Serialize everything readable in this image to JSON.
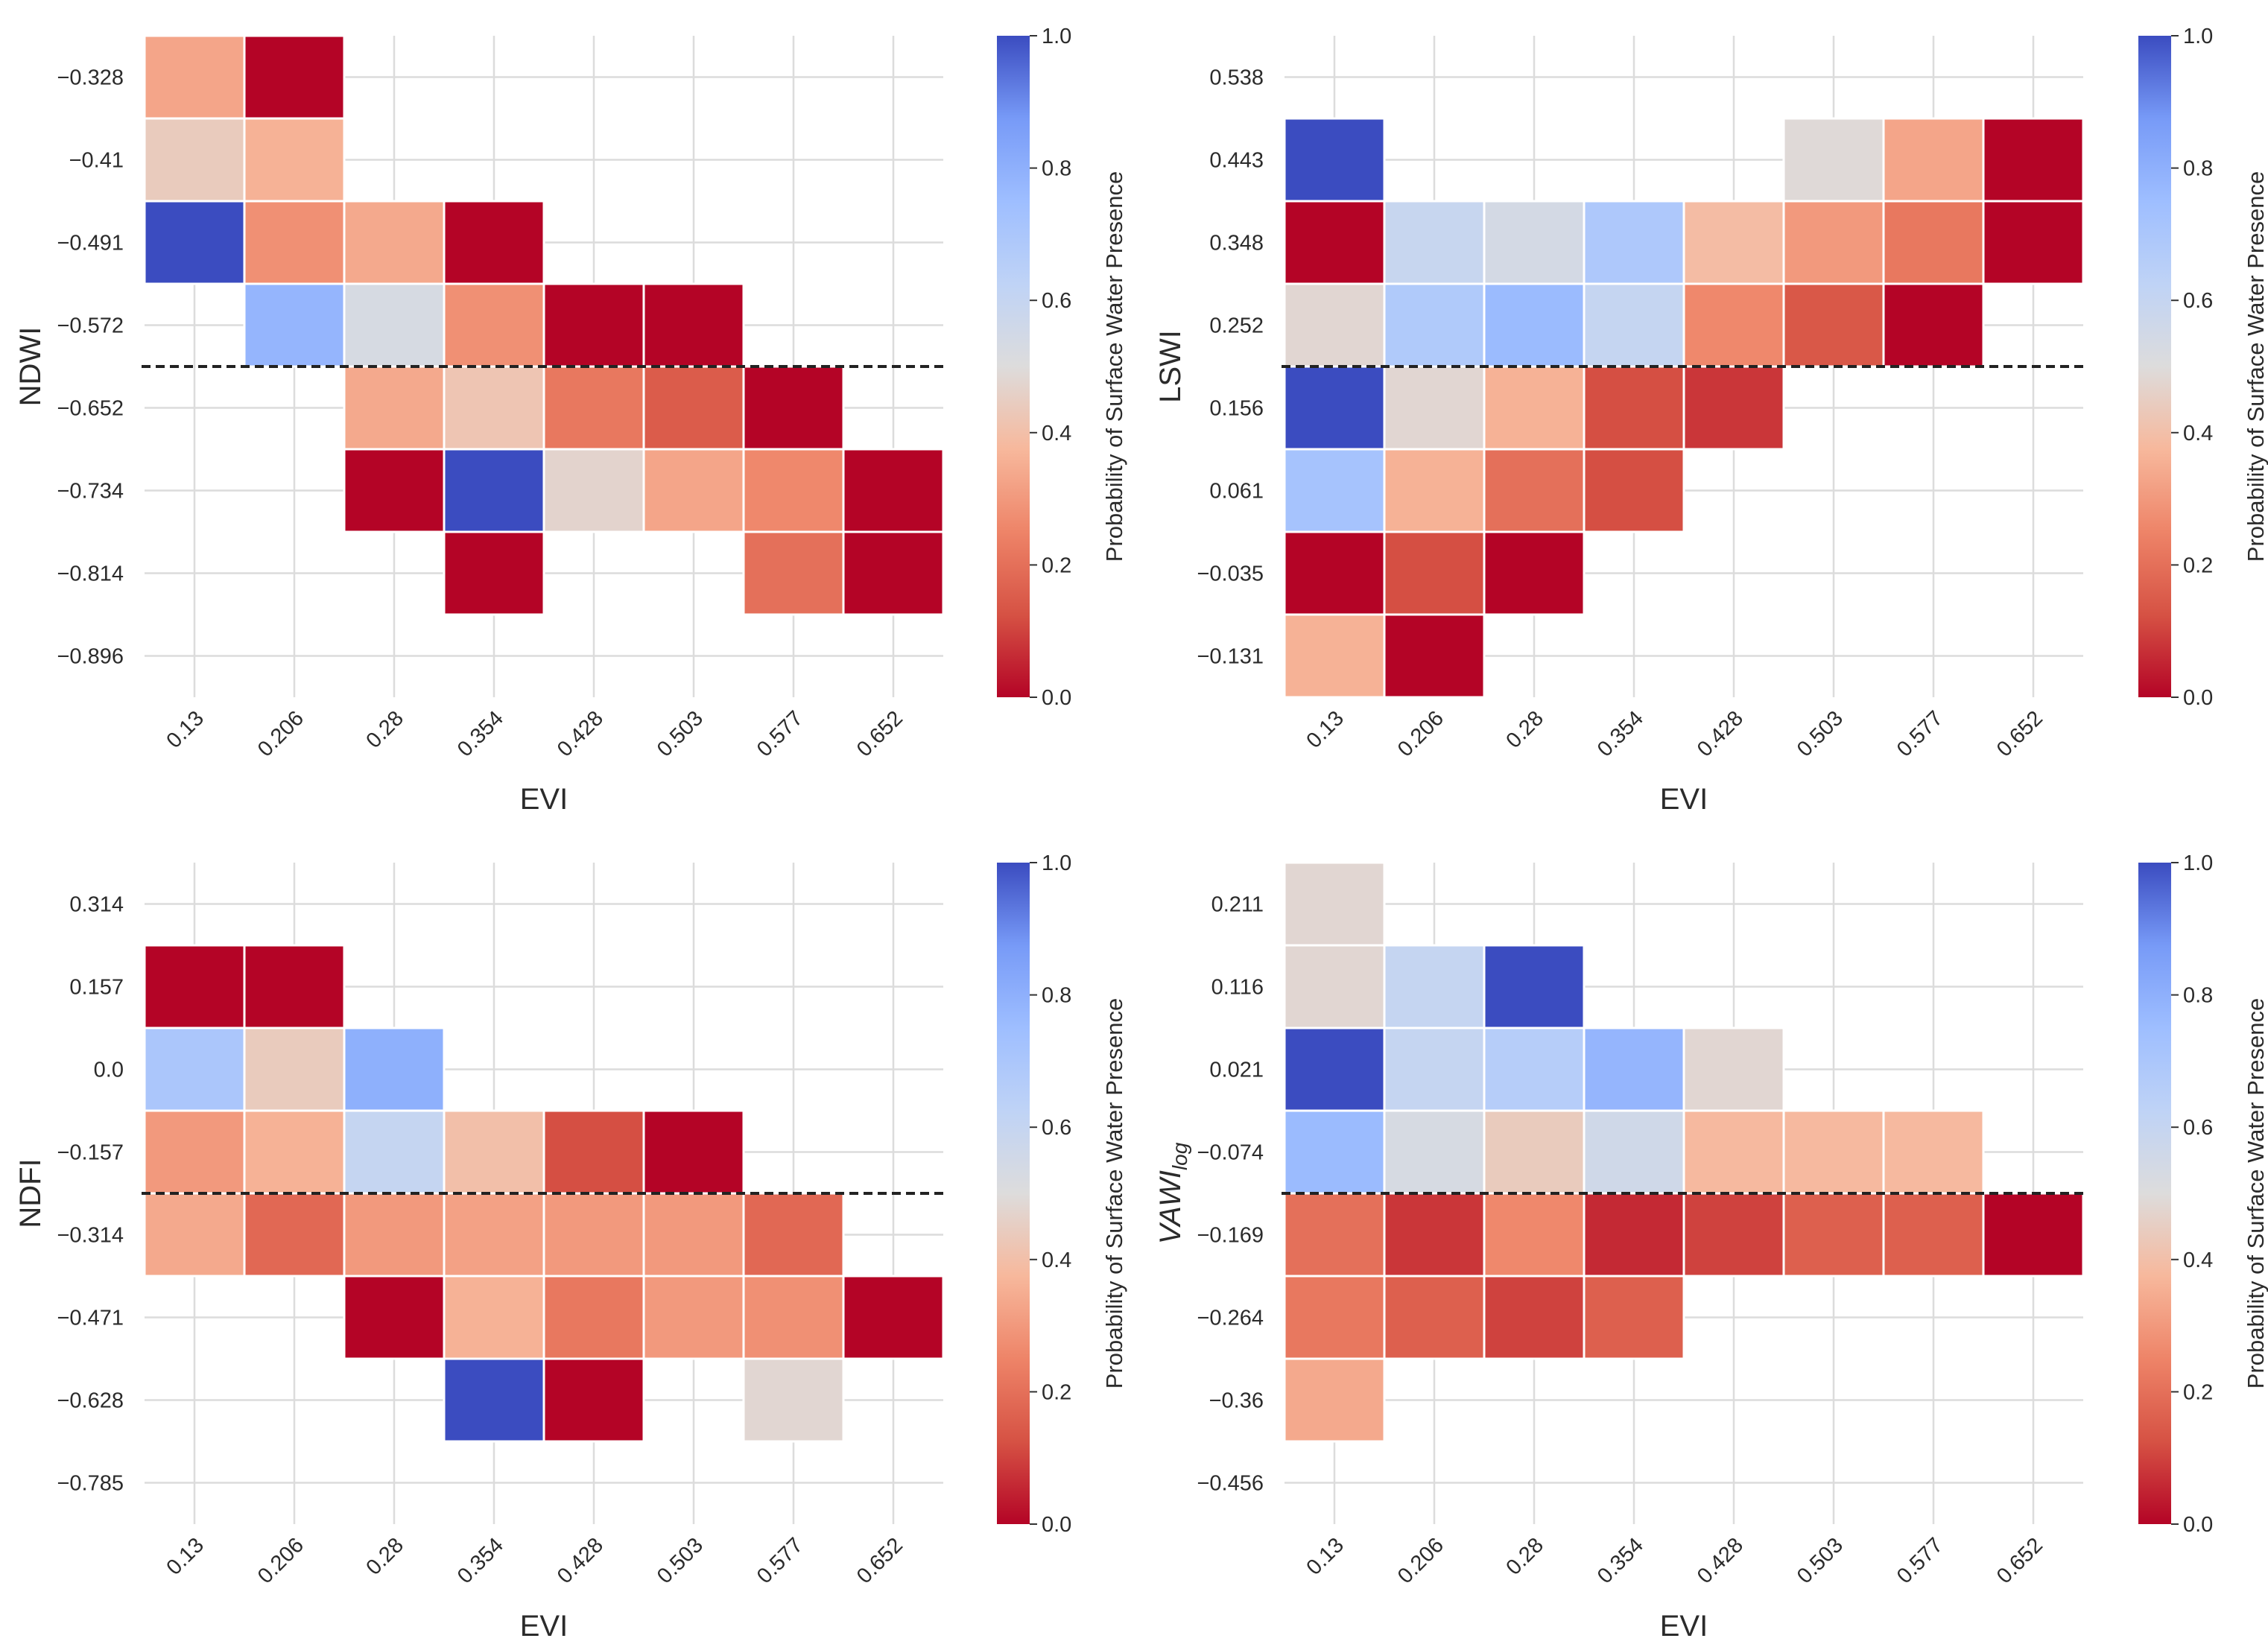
{
  "chart_data": [
    {
      "type": "heatmap",
      "id": "ndwi",
      "xlabel": "EVI",
      "ylabel": "NDWI",
      "x_ticks": [
        "0.13",
        "0.206",
        "0.28",
        "0.354",
        "0.428",
        "0.503",
        "0.577",
        "0.652"
      ],
      "y_ticks": [
        "-0.328",
        "-0.41",
        "-0.491",
        "-0.572",
        "-0.652",
        "-0.734",
        "-0.814",
        "-0.896"
      ],
      "threshold_between_rows": [
        3,
        4
      ],
      "cells": [
        [
          0.33,
          0.0,
          null,
          null,
          null,
          null,
          null,
          null
        ],
        [
          0.44,
          0.36,
          null,
          null,
          null,
          null,
          null,
          null
        ],
        [
          1.0,
          0.28,
          0.34,
          0.0,
          null,
          null,
          null,
          null
        ],
        [
          null,
          0.78,
          0.53,
          0.28,
          0.0,
          0.0,
          null,
          null
        ],
        [
          null,
          null,
          0.34,
          0.42,
          0.22,
          0.15,
          0.0,
          null
        ],
        [
          null,
          null,
          0.0,
          1.0,
          0.47,
          0.33,
          0.26,
          0.0
        ],
        [
          null,
          null,
          null,
          0.0,
          null,
          null,
          0.2,
          0.0
        ],
        [
          null,
          null,
          null,
          null,
          null,
          null,
          null,
          null
        ]
      ],
      "colorbar": {
        "label": "Probability of Surface Water Presence",
        "ticks": [
          "0.0",
          "0.2",
          "0.4",
          "0.6",
          "0.8",
          "1.0"
        ],
        "range": [
          0.0,
          1.0
        ]
      }
    },
    {
      "type": "heatmap",
      "id": "lswi",
      "xlabel": "EVI",
      "ylabel": "LSWI",
      "x_ticks": [
        "0.13",
        "0.206",
        "0.28",
        "0.354",
        "0.428",
        "0.503",
        "0.577",
        "0.652"
      ],
      "y_ticks": [
        "0.538",
        "0.443",
        "0.348",
        "0.252",
        "0.156",
        "0.061",
        "-0.035",
        "-0.131"
      ],
      "threshold_between_rows": [
        3,
        4
      ],
      "cells": [
        [
          null,
          null,
          null,
          null,
          null,
          null,
          null,
          null
        ],
        [
          1.0,
          null,
          null,
          null,
          null,
          0.49,
          0.33,
          0.0
        ],
        [
          0.0,
          0.59,
          0.54,
          0.69,
          0.39,
          0.3,
          0.22,
          0.0
        ],
        [
          0.48,
          0.68,
          0.76,
          0.6,
          0.26,
          0.14,
          0.0,
          null
        ],
        [
          1.0,
          0.48,
          0.36,
          0.12,
          0.08,
          null,
          null,
          null
        ],
        [
          0.72,
          0.36,
          0.2,
          0.12,
          null,
          null,
          null,
          null
        ],
        [
          0.0,
          0.12,
          0.0,
          null,
          null,
          null,
          null,
          null
        ],
        [
          0.36,
          0.0,
          null,
          null,
          null,
          null,
          null,
          null
        ]
      ],
      "colorbar": {
        "label": "Probability of Surface Water Presence",
        "ticks": [
          "0.0",
          "0.2",
          "0.4",
          "0.6",
          "0.8",
          "1.0"
        ],
        "range": [
          0.0,
          1.0
        ]
      }
    },
    {
      "type": "heatmap",
      "id": "ndfi",
      "xlabel": "EVI",
      "ylabel": "NDFI",
      "x_ticks": [
        "0.13",
        "0.206",
        "0.28",
        "0.354",
        "0.428",
        "0.503",
        "0.577",
        "0.652"
      ],
      "y_ticks": [
        "0.314",
        "0.157",
        "0.0",
        "-0.157",
        "-0.314",
        "-0.471",
        "-0.628",
        "-0.785"
      ],
      "threshold_between_rows": [
        3,
        4
      ],
      "cells": [
        [
          null,
          null,
          null,
          null,
          null,
          null,
          null,
          null
        ],
        [
          0.0,
          0.0,
          null,
          null,
          null,
          null,
          null,
          null
        ],
        [
          0.7,
          0.44,
          0.8,
          null,
          null,
          null,
          null,
          null
        ],
        [
          0.3,
          0.36,
          0.6,
          0.4,
          0.12,
          0.0,
          null,
          null
        ],
        [
          0.34,
          0.18,
          0.3,
          0.32,
          0.3,
          0.3,
          0.18,
          null
        ],
        [
          null,
          null,
          0.0,
          0.36,
          0.22,
          0.3,
          0.28,
          0.0
        ],
        [
          null,
          null,
          null,
          1.0,
          0.0,
          null,
          0.48,
          null
        ],
        [
          null,
          null,
          null,
          null,
          null,
          null,
          null,
          null
        ]
      ],
      "colorbar": {
        "label": "Probability of Surface Water Presence",
        "ticks": [
          "0.0",
          "0.2",
          "0.4",
          "0.6",
          "0.8",
          "1.0"
        ],
        "range": [
          0.0,
          1.0
        ]
      }
    },
    {
      "type": "heatmap",
      "id": "vawi",
      "xlabel": "EVI",
      "ylabel_main": "VAWI",
      "ylabel_sub": "log",
      "x_ticks": [
        "0.13",
        "0.206",
        "0.28",
        "0.354",
        "0.428",
        "0.503",
        "0.577",
        "0.652"
      ],
      "y_ticks": [
        "0.211",
        "0.116",
        "0.021",
        "-0.074",
        "-0.169",
        "-0.264",
        "-0.36",
        "-0.456"
      ],
      "threshold_between_rows": [
        3,
        4
      ],
      "cells": [
        [
          0.48,
          null,
          null,
          null,
          null,
          null,
          null,
          null
        ],
        [
          0.48,
          0.6,
          1.0,
          null,
          null,
          null,
          null,
          null
        ],
        [
          1.0,
          0.6,
          0.66,
          0.78,
          0.48,
          null,
          null,
          null
        ],
        [
          0.76,
          0.53,
          0.44,
          0.56,
          0.38,
          0.38,
          0.38,
          null
        ],
        [
          0.2,
          0.08,
          0.26,
          0.06,
          0.1,
          0.16,
          0.16,
          0.0
        ],
        [
          0.22,
          0.16,
          0.1,
          0.16,
          null,
          null,
          null,
          null
        ],
        [
          0.34,
          null,
          null,
          null,
          null,
          null,
          null,
          null
        ],
        [
          null,
          null,
          null,
          null,
          null,
          null,
          null,
          null
        ]
      ],
      "colorbar": {
        "label": "Probability of Surface Water Presence",
        "ticks": [
          "0.0",
          "0.2",
          "0.4",
          "0.6",
          "0.8",
          "1.0"
        ],
        "range": [
          0.0,
          1.0
        ]
      }
    }
  ]
}
